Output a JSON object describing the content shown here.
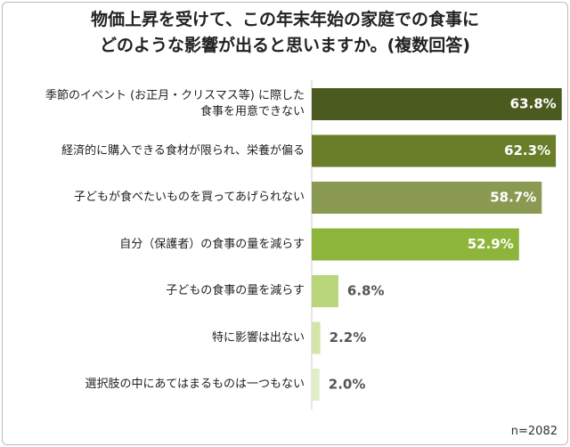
{
  "chart_data": {
    "type": "bar",
    "orientation": "horizontal",
    "title": "物価上昇を受けて、この年末年始の家庭での食事に\nどのような影響が出ると思いますか。(複数回答)",
    "categories": [
      "季節のイベント (お正月・クリスマス等) に際した\n食事を用意できない",
      "経済的に購入できる食材が限られ、栄養が偏る",
      "子どもが食べたいものを買ってあげられない",
      "自分（保護者）の食事の量を減らす",
      "子どもの食事の量を減らす",
      "特に影響は出ない",
      "選択肢の中にあてはまるものは一つもない"
    ],
    "values": [
      63.8,
      62.3,
      58.7,
      52.9,
      6.8,
      2.2,
      2.0
    ],
    "value_labels": [
      "63.8%",
      "62.3%",
      "58.7%",
      "52.9%",
      "6.8%",
      "2.2%",
      "2.0%"
    ],
    "colors": [
      "#4b5a1e",
      "#6a7e2a",
      "#8a9a52",
      "#8db43b",
      "#b9d67b",
      "#d3e5a8",
      "#e2edc8"
    ],
    "note": "n=2082"
  }
}
